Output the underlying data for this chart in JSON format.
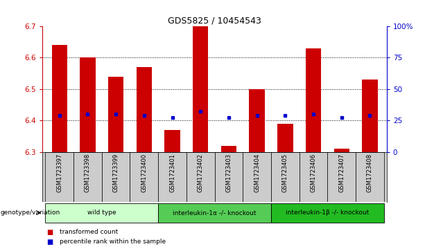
{
  "title": "GDS5825 / 10454543",
  "samples": [
    "GSM1723397",
    "GSM1723398",
    "GSM1723399",
    "GSM1723400",
    "GSM1723401",
    "GSM1723402",
    "GSM1723403",
    "GSM1723404",
    "GSM1723405",
    "GSM1723406",
    "GSM1723407",
    "GSM1723408"
  ],
  "bar_values": [
    6.64,
    6.6,
    6.54,
    6.57,
    6.37,
    6.7,
    6.32,
    6.5,
    6.39,
    6.63,
    6.31,
    6.53
  ],
  "dot_values": [
    6.415,
    6.42,
    6.42,
    6.415,
    6.41,
    6.43,
    6.41,
    6.415,
    6.415,
    6.42,
    6.41,
    6.415
  ],
  "ylim_left": [
    6.3,
    6.7
  ],
  "ylim_right": [
    0,
    100
  ],
  "yticks_left": [
    6.3,
    6.4,
    6.5,
    6.6,
    6.7
  ],
  "yticks_right": [
    0,
    25,
    50,
    75,
    100
  ],
  "ytick_labels_right": [
    "0",
    "25",
    "50",
    "75",
    "100%"
  ],
  "grid_values": [
    6.4,
    6.5,
    6.6
  ],
  "bar_color": "#cc0000",
  "dot_color": "#0000cc",
  "bar_base": 6.3,
  "groups": [
    {
      "label": "wild type",
      "start": 0,
      "end": 3,
      "color": "#ccffcc"
    },
    {
      "label": "interleukin-1α -/- knockout",
      "start": 4,
      "end": 7,
      "color": "#55cc55"
    },
    {
      "label": "interleukin-1β -/- knockout",
      "start": 8,
      "end": 11,
      "color": "#22bb22"
    }
  ],
  "genotype_label": "genotype/variation",
  "legend_items": [
    {
      "label": "transformed count",
      "color": "#cc0000"
    },
    {
      "label": "percentile rank within the sample",
      "color": "#0000cc"
    }
  ],
  "bg_color": "#ffffff",
  "tick_area_bg": "#cccccc",
  "left_tick_color": "#cc0000",
  "right_tick_color": "#0000cc",
  "bar_width": 0.55,
  "n_samples": 12
}
